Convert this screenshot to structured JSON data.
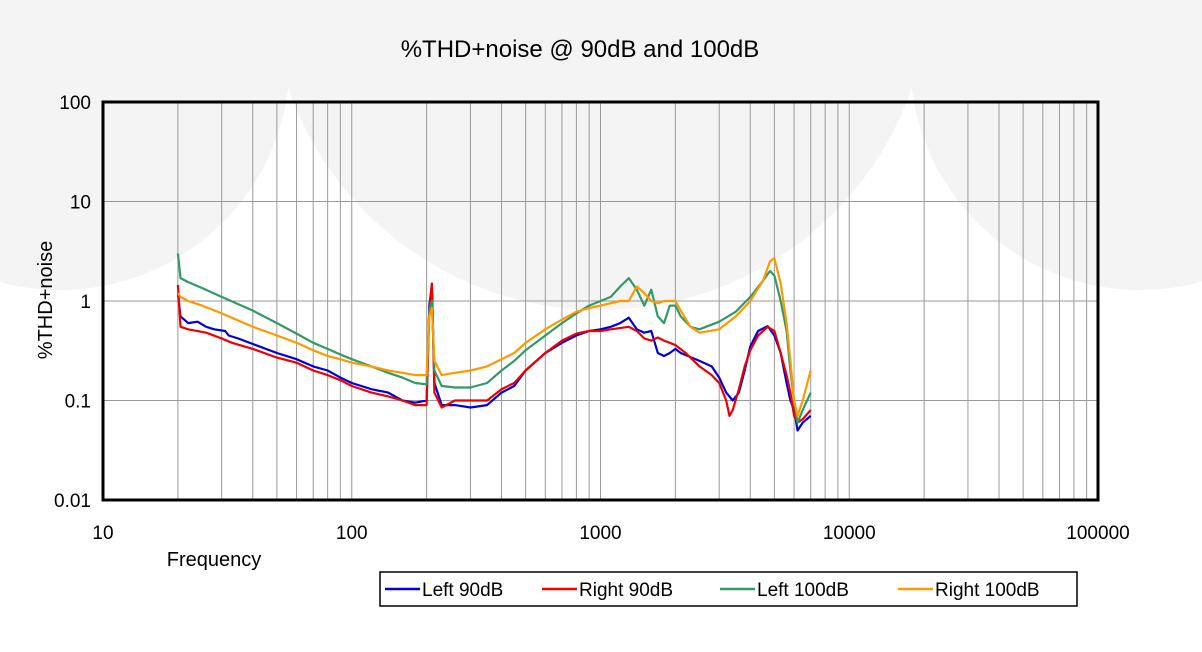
{
  "chart_data": {
    "type": "line",
    "title": "%THD+noise @ 90dB and 100dB",
    "xlabel": "Frequency",
    "ylabel": "%THD+noise",
    "xscale": "log",
    "yscale": "log",
    "xlim": [
      10,
      100000
    ],
    "ylim": [
      0.01,
      100
    ],
    "xticks": [
      "10",
      "100",
      "1000",
      "10000",
      "100000"
    ],
    "yticks": [
      "0.01",
      "0.1",
      "1",
      "10",
      "100"
    ],
    "grid": true,
    "legend_position": "bottom-right",
    "series": [
      {
        "name": "Left 90dB",
        "color": "#0000dd",
        "points": [
          [
            20,
            1.2
          ],
          [
            20.5,
            0.7
          ],
          [
            22,
            0.6
          ],
          [
            24,
            0.62
          ],
          [
            26,
            0.55
          ],
          [
            28,
            0.52
          ],
          [
            31,
            0.5
          ],
          [
            32,
            0.45
          ],
          [
            35,
            0.42
          ],
          [
            40,
            0.37
          ],
          [
            50,
            0.3
          ],
          [
            60,
            0.26
          ],
          [
            70,
            0.22
          ],
          [
            80,
            0.2
          ],
          [
            90,
            0.17
          ],
          [
            100,
            0.15
          ],
          [
            120,
            0.13
          ],
          [
            140,
            0.12
          ],
          [
            160,
            0.1
          ],
          [
            180,
            0.095
          ],
          [
            200,
            0.1
          ],
          [
            205,
            0.9
          ],
          [
            210,
            1.45
          ],
          [
            215,
            0.15
          ],
          [
            230,
            0.09
          ],
          [
            260,
            0.09
          ],
          [
            300,
            0.085
          ],
          [
            350,
            0.09
          ],
          [
            400,
            0.12
          ],
          [
            450,
            0.14
          ],
          [
            500,
            0.2
          ],
          [
            600,
            0.3
          ],
          [
            700,
            0.38
          ],
          [
            800,
            0.45
          ],
          [
            900,
            0.5
          ],
          [
            1000,
            0.52
          ],
          [
            1100,
            0.55
          ],
          [
            1200,
            0.6
          ],
          [
            1300,
            0.68
          ],
          [
            1400,
            0.52
          ],
          [
            1500,
            0.48
          ],
          [
            1600,
            0.5
          ],
          [
            1700,
            0.3
          ],
          [
            1800,
            0.28
          ],
          [
            1900,
            0.3
          ],
          [
            2000,
            0.33
          ],
          [
            2100,
            0.3
          ],
          [
            2500,
            0.25
          ],
          [
            2800,
            0.22
          ],
          [
            3000,
            0.17
          ],
          [
            3200,
            0.12
          ],
          [
            3400,
            0.1
          ],
          [
            3600,
            0.12
          ],
          [
            3800,
            0.2
          ],
          [
            4000,
            0.35
          ],
          [
            4300,
            0.5
          ],
          [
            4700,
            0.56
          ],
          [
            5000,
            0.45
          ],
          [
            5300,
            0.3
          ],
          [
            5600,
            0.15
          ],
          [
            5800,
            0.1
          ],
          [
            6000,
            0.08
          ],
          [
            6200,
            0.05
          ],
          [
            6500,
            0.06
          ],
          [
            7000,
            0.07
          ]
        ]
      },
      {
        "name": "Right 90dB",
        "color": "#ee0000",
        "points": [
          [
            20,
            1.45
          ],
          [
            20.5,
            0.55
          ],
          [
            22,
            0.52
          ],
          [
            26,
            0.48
          ],
          [
            30,
            0.42
          ],
          [
            33,
            0.38
          ],
          [
            40,
            0.33
          ],
          [
            50,
            0.27
          ],
          [
            60,
            0.24
          ],
          [
            70,
            0.2
          ],
          [
            80,
            0.18
          ],
          [
            90,
            0.16
          ],
          [
            100,
            0.14
          ],
          [
            120,
            0.12
          ],
          [
            140,
            0.11
          ],
          [
            160,
            0.1
          ],
          [
            180,
            0.09
          ],
          [
            200,
            0.09
          ],
          [
            205,
            0.8
          ],
          [
            210,
            1.5
          ],
          [
            215,
            0.12
          ],
          [
            230,
            0.085
          ],
          [
            260,
            0.1
          ],
          [
            300,
            0.1
          ],
          [
            350,
            0.1
          ],
          [
            400,
            0.13
          ],
          [
            450,
            0.15
          ],
          [
            500,
            0.2
          ],
          [
            600,
            0.3
          ],
          [
            700,
            0.4
          ],
          [
            800,
            0.47
          ],
          [
            900,
            0.5
          ],
          [
            1000,
            0.5
          ],
          [
            1100,
            0.52
          ],
          [
            1300,
            0.55
          ],
          [
            1400,
            0.5
          ],
          [
            1500,
            0.42
          ],
          [
            1600,
            0.4
          ],
          [
            1700,
            0.43
          ],
          [
            1800,
            0.4
          ],
          [
            1900,
            0.38
          ],
          [
            2000,
            0.36
          ],
          [
            2200,
            0.3
          ],
          [
            2500,
            0.22
          ],
          [
            2800,
            0.18
          ],
          [
            3000,
            0.15
          ],
          [
            3200,
            0.1
          ],
          [
            3300,
            0.07
          ],
          [
            3400,
            0.08
          ],
          [
            3600,
            0.13
          ],
          [
            3800,
            0.22
          ],
          [
            4000,
            0.32
          ],
          [
            4300,
            0.45
          ],
          [
            4700,
            0.55
          ],
          [
            5000,
            0.5
          ],
          [
            5300,
            0.3
          ],
          [
            5600,
            0.18
          ],
          [
            5800,
            0.12
          ],
          [
            6000,
            0.07
          ],
          [
            6200,
            0.06
          ],
          [
            6500,
            0.065
          ],
          [
            7000,
            0.08
          ]
        ]
      },
      {
        "name": "Left 100dB",
        "color": "#339966",
        "points": [
          [
            20,
            3.0
          ],
          [
            20.5,
            1.7
          ],
          [
            22,
            1.55
          ],
          [
            25,
            1.35
          ],
          [
            30,
            1.1
          ],
          [
            40,
            0.8
          ],
          [
            50,
            0.6
          ],
          [
            60,
            0.47
          ],
          [
            70,
            0.38
          ],
          [
            80,
            0.33
          ],
          [
            90,
            0.29
          ],
          [
            100,
            0.26
          ],
          [
            120,
            0.22
          ],
          [
            140,
            0.19
          ],
          [
            160,
            0.17
          ],
          [
            180,
            0.15
          ],
          [
            200,
            0.145
          ],
          [
            205,
            0.8
          ],
          [
            210,
            1.0
          ],
          [
            215,
            0.2
          ],
          [
            230,
            0.14
          ],
          [
            260,
            0.135
          ],
          [
            300,
            0.135
          ],
          [
            350,
            0.15
          ],
          [
            400,
            0.2
          ],
          [
            450,
            0.25
          ],
          [
            500,
            0.32
          ],
          [
            600,
            0.45
          ],
          [
            700,
            0.6
          ],
          [
            800,
            0.75
          ],
          [
            900,
            0.9
          ],
          [
            1000,
            1.0
          ],
          [
            1100,
            1.1
          ],
          [
            1200,
            1.4
          ],
          [
            1300,
            1.7
          ],
          [
            1400,
            1.3
          ],
          [
            1500,
            0.9
          ],
          [
            1600,
            1.3
          ],
          [
            1700,
            0.7
          ],
          [
            1800,
            0.6
          ],
          [
            1900,
            0.9
          ],
          [
            2000,
            0.9
          ],
          [
            2100,
            0.7
          ],
          [
            2300,
            0.55
          ],
          [
            2500,
            0.52
          ],
          [
            3000,
            0.62
          ],
          [
            3500,
            0.78
          ],
          [
            4000,
            1.1
          ],
          [
            4500,
            1.6
          ],
          [
            4800,
            2.0
          ],
          [
            5000,
            1.8
          ],
          [
            5300,
            1.0
          ],
          [
            5600,
            0.5
          ],
          [
            5800,
            0.2
          ],
          [
            6000,
            0.1
          ],
          [
            6200,
            0.06
          ],
          [
            6500,
            0.08
          ],
          [
            7000,
            0.12
          ]
        ]
      },
      {
        "name": "Right 100dB",
        "color": "#ff9900",
        "points": [
          [
            20,
            1.2
          ],
          [
            20.5,
            1.1
          ],
          [
            22,
            1.0
          ],
          [
            25,
            0.9
          ],
          [
            30,
            0.75
          ],
          [
            40,
            0.55
          ],
          [
            50,
            0.45
          ],
          [
            60,
            0.38
          ],
          [
            70,
            0.32
          ],
          [
            80,
            0.28
          ],
          [
            90,
            0.26
          ],
          [
            100,
            0.24
          ],
          [
            120,
            0.22
          ],
          [
            140,
            0.2
          ],
          [
            160,
            0.19
          ],
          [
            180,
            0.18
          ],
          [
            200,
            0.18
          ],
          [
            205,
            0.7
          ],
          [
            210,
            0.85
          ],
          [
            215,
            0.25
          ],
          [
            230,
            0.18
          ],
          [
            260,
            0.19
          ],
          [
            300,
            0.2
          ],
          [
            350,
            0.22
          ],
          [
            400,
            0.26
          ],
          [
            450,
            0.3
          ],
          [
            500,
            0.38
          ],
          [
            600,
            0.52
          ],
          [
            700,
            0.65
          ],
          [
            800,
            0.78
          ],
          [
            900,
            0.85
          ],
          [
            1000,
            0.9
          ],
          [
            1100,
            0.95
          ],
          [
            1200,
            1.0
          ],
          [
            1300,
            1.0
          ],
          [
            1400,
            1.4
          ],
          [
            1500,
            1.2
          ],
          [
            1600,
            1.0
          ],
          [
            1700,
            0.95
          ],
          [
            1800,
            1.0
          ],
          [
            1900,
            1.0
          ],
          [
            2000,
            1.0
          ],
          [
            2100,
            0.8
          ],
          [
            2300,
            0.55
          ],
          [
            2500,
            0.48
          ],
          [
            3000,
            0.52
          ],
          [
            3500,
            0.7
          ],
          [
            4000,
            1.0
          ],
          [
            4500,
            1.6
          ],
          [
            4800,
            2.5
          ],
          [
            5000,
            2.7
          ],
          [
            5300,
            1.5
          ],
          [
            5600,
            0.6
          ],
          [
            5800,
            0.25
          ],
          [
            6000,
            0.1
          ],
          [
            6200,
            0.07
          ],
          [
            6500,
            0.1
          ],
          [
            7000,
            0.2
          ]
        ]
      }
    ]
  }
}
